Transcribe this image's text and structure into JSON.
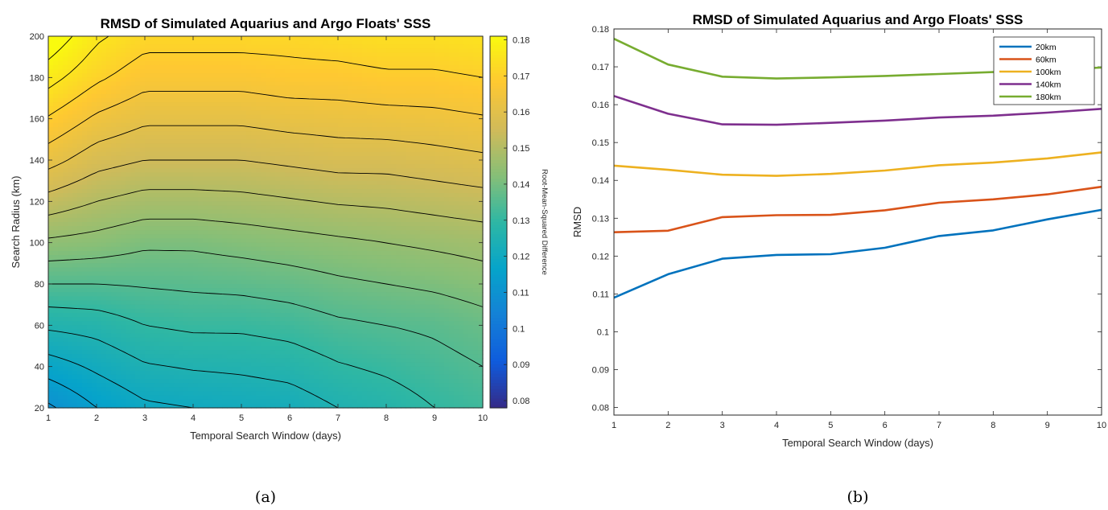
{
  "chart_data": [
    {
      "type": "heatmap",
      "title": "RMSD of Simulated Aquarius and Argo Floats' SSS",
      "xlabel": "Temporal Search Window (days)",
      "ylabel": "Search Radius (km)",
      "colorbar_label": "Root-Mean-Squared Difference",
      "x_ticks": [
        1,
        2,
        3,
        4,
        5,
        6,
        7,
        8,
        9,
        10
      ],
      "y_ticks": [
        20,
        40,
        60,
        80,
        100,
        120,
        140,
        160,
        180,
        200
      ],
      "xlim": [
        1,
        10
      ],
      "ylim": [
        20,
        200
      ],
      "colorbar_ticks": [
        0.08,
        0.09,
        0.1,
        0.11,
        0.12,
        0.13,
        0.14,
        0.15,
        0.16,
        0.17,
        0.18
      ],
      "colorbar_range": [
        0.078,
        0.181
      ],
      "colorbar_colors": [
        "#352a87",
        "#0f5cdd",
        "#1481d6",
        "#06a4ca",
        "#2eb7a4",
        "#87bf77",
        "#d1bb59",
        "#fec832",
        "#f9fb0e"
      ],
      "x": [
        1,
        2,
        3,
        4,
        5,
        6,
        7,
        8,
        9,
        10
      ],
      "y": [
        20,
        60,
        100,
        140,
        180
      ],
      "values": [
        [
          0.109,
          0.115,
          0.119,
          0.12,
          0.121,
          0.122,
          0.125,
          0.127,
          0.13,
          0.132
        ],
        [
          0.126,
          0.127,
          0.13,
          0.131,
          0.131,
          0.132,
          0.134,
          0.135,
          0.136,
          0.138
        ],
        [
          0.144,
          0.143,
          0.141,
          0.141,
          0.142,
          0.143,
          0.144,
          0.145,
          0.146,
          0.147
        ],
        [
          0.162,
          0.157,
          0.155,
          0.155,
          0.155,
          0.156,
          0.157,
          0.157,
          0.158,
          0.159
        ],
        [
          0.177,
          0.171,
          0.167,
          0.167,
          0.167,
          0.168,
          0.168,
          0.169,
          0.169,
          0.17
        ]
      ],
      "extra_rows": [
        {
          "y": 200,
          "values": [
            0.184,
            0.176,
            0.172,
            0.172,
            0.172,
            0.172,
            0.173,
            0.174,
            0.174,
            0.175
          ]
        }
      ],
      "contour_levels": [
        0.11,
        0.115,
        0.12,
        0.125,
        0.13,
        0.135,
        0.14,
        0.145,
        0.15,
        0.155,
        0.16,
        0.165,
        0.17,
        0.175,
        0.18
      ],
      "caption": "(a)"
    },
    {
      "type": "line",
      "title": "RMSD of Simulated Aquarius and Argo Floats' SSS",
      "xlabel": "Temporal Search Window (days)",
      "ylabel": "RMSD",
      "x": [
        1,
        2,
        3,
        4,
        5,
        6,
        7,
        8,
        9,
        10
      ],
      "xlim": [
        1,
        10
      ],
      "ylim": [
        0.078,
        0.18
      ],
      "x_ticks": [
        1,
        2,
        3,
        4,
        5,
        6,
        7,
        8,
        9,
        10
      ],
      "y_ticks": [
        0.08,
        0.09,
        0.1,
        0.11,
        0.12,
        0.13,
        0.14,
        0.15,
        0.16,
        0.17,
        0.18
      ],
      "legend_position": "top-right",
      "series": [
        {
          "name": "20km",
          "color": "#0072bd",
          "values": [
            0.109,
            0.1152,
            0.1193,
            0.1203,
            0.1205,
            0.1222,
            0.1253,
            0.1268,
            0.1297,
            0.1322
          ]
        },
        {
          "name": "60km",
          "color": "#d95319",
          "values": [
            0.1263,
            0.1267,
            0.1303,
            0.1308,
            0.1309,
            0.1321,
            0.1341,
            0.135,
            0.1363,
            0.1383
          ]
        },
        {
          "name": "100km",
          "color": "#edb120",
          "values": [
            0.1439,
            0.1428,
            0.1415,
            0.1412,
            0.1417,
            0.1426,
            0.144,
            0.1447,
            0.1458,
            0.1474
          ]
        },
        {
          "name": "140km",
          "color": "#7e2f8e",
          "values": [
            0.1623,
            0.1576,
            0.1548,
            0.1547,
            0.1552,
            0.1558,
            0.1566,
            0.1571,
            0.1579,
            0.1589
          ]
        },
        {
          "name": "180km",
          "color": "#77ac30",
          "values": [
            0.1774,
            0.1706,
            0.1674,
            0.1669,
            0.1672,
            0.1676,
            0.1681,
            0.1686,
            0.1692,
            0.1698
          ]
        }
      ],
      "caption": "(b)"
    }
  ]
}
